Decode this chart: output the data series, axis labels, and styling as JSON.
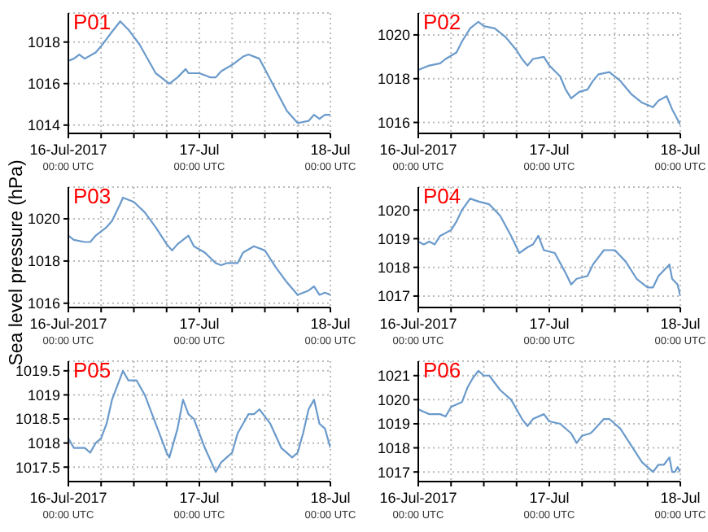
{
  "chart_data": [
    {
      "type": "line",
      "title": "P01",
      "x": [
        "2017-07-16T00:00",
        "2017-07-16T01:00",
        "2017-07-16T02:00",
        "2017-07-16T03:00",
        "2017-07-16T05:00",
        "2017-07-16T06:00",
        "2017-07-16T08:00",
        "2017-07-16T09:30",
        "2017-07-16T11:00",
        "2017-07-16T13:00",
        "2017-07-16T16:00",
        "2017-07-16T18:30",
        "2017-07-16T20:00",
        "2017-07-16T21:30",
        "2017-07-16T22:00",
        "2017-07-17T00:00",
        "2017-07-17T02:00",
        "2017-07-17T03:00",
        "2017-07-17T04:00",
        "2017-07-17T06:00",
        "2017-07-17T08:00",
        "2017-07-17T09:00",
        "2017-07-17T11:00",
        "2017-07-17T12:00",
        "2017-07-17T14:00",
        "2017-07-17T16:00",
        "2017-07-17T18:00",
        "2017-07-17T20:00",
        "2017-07-17T21:00",
        "2017-07-17T22:00",
        "2017-07-17T23:00",
        "2017-07-18T00:00"
      ],
      "series": [
        {
          "color": "#6a9acb",
          "values": [
            1017.1,
            1017.2,
            1017.4,
            1017.2,
            1017.5,
            1017.8,
            1018.5,
            1019.0,
            1018.6,
            1017.9,
            1016.5,
            1016.0,
            1016.3,
            1016.7,
            1016.5,
            1016.5,
            1016.3,
            1016.3,
            1016.6,
            1016.9,
            1017.3,
            1017.4,
            1017.2,
            1016.7,
            1015.7,
            1014.7,
            1014.1,
            1014.2,
            1014.5,
            1014.3,
            1014.5,
            1014.5
          ]
        }
      ],
      "xlim": [
        "2017-07-16T00:00",
        "2017-07-18T00:00"
      ],
      "xticks": [
        {
          "value": "2017-07-16T00:00",
          "label": "16-Jul-2017\n00:00 UTC"
        },
        {
          "value": "2017-07-16T06:00",
          "label": null
        },
        {
          "value": "2017-07-16T12:00",
          "label": null
        },
        {
          "value": "2017-07-16T18:00",
          "label": null
        },
        {
          "value": "2017-07-17T00:00",
          "label": "17-Jul\n00:00 UTC"
        },
        {
          "value": "2017-07-17T06:00",
          "label": null
        },
        {
          "value": "2017-07-17T12:00",
          "label": null
        },
        {
          "value": "2017-07-17T18:00",
          "label": null
        },
        {
          "value": "2017-07-18T00:00",
          "label": "18-Jul\n00:00 UTC"
        }
      ],
      "ylim": [
        1013.6,
        1019.4
      ],
      "yticks": [
        1014,
        1016,
        1018
      ],
      "grid": true,
      "marker": "none",
      "line_style": "solid",
      "legend": false
    },
    {
      "type": "line",
      "title": "P02",
      "x": [
        "2017-07-16T00:00",
        "2017-07-16T02:00",
        "2017-07-16T04:00",
        "2017-07-16T05:00",
        "2017-07-16T07:00",
        "2017-07-16T08:00",
        "2017-07-16T09:30",
        "2017-07-16T11:00",
        "2017-07-16T12:00",
        "2017-07-16T14:00",
        "2017-07-16T16:00",
        "2017-07-16T18:00",
        "2017-07-16T19:00",
        "2017-07-16T20:00",
        "2017-07-16T21:00",
        "2017-07-16T23:00",
        "2017-07-17T00:00",
        "2017-07-17T02:00",
        "2017-07-17T03:00",
        "2017-07-17T04:00",
        "2017-07-17T05:30",
        "2017-07-17T07:00",
        "2017-07-17T08:00",
        "2017-07-17T09:00",
        "2017-07-17T11:00",
        "2017-07-17T13:00",
        "2017-07-17T15:00",
        "2017-07-17T17:00",
        "2017-07-17T19:00",
        "2017-07-17T20:00",
        "2017-07-17T21:30",
        "2017-07-17T22:30",
        "2017-07-18T00:00"
      ],
      "series": [
        {
          "color": "#6a9acb",
          "values": [
            1018.4,
            1018.6,
            1018.7,
            1018.9,
            1019.2,
            1019.7,
            1020.3,
            1020.6,
            1020.4,
            1020.3,
            1019.9,
            1019.3,
            1018.9,
            1018.6,
            1018.9,
            1019.0,
            1018.6,
            1018.1,
            1017.5,
            1017.1,
            1017.4,
            1017.5,
            1017.9,
            1018.2,
            1018.3,
            1017.9,
            1017.3,
            1016.9,
            1016.7,
            1017.0,
            1017.2,
            1016.6,
            1015.9
          ]
        }
      ],
      "xlim": [
        "2017-07-16T00:00",
        "2017-07-18T00:00"
      ],
      "xticks": [
        {
          "value": "2017-07-16T00:00",
          "label": "16-Jul-2017\n00:00 UTC"
        },
        {
          "value": "2017-07-16T06:00",
          "label": null
        },
        {
          "value": "2017-07-16T12:00",
          "label": null
        },
        {
          "value": "2017-07-16T18:00",
          "label": null
        },
        {
          "value": "2017-07-17T00:00",
          "label": "17-Jul\n00:00 UTC"
        },
        {
          "value": "2017-07-17T06:00",
          "label": null
        },
        {
          "value": "2017-07-17T12:00",
          "label": null
        },
        {
          "value": "2017-07-17T18:00",
          "label": null
        },
        {
          "value": "2017-07-18T00:00",
          "label": "18-Jul\n00:00 UTC"
        }
      ],
      "ylim": [
        1015.5,
        1021.0
      ],
      "yticks": [
        1016,
        1018,
        1020
      ],
      "grid": true,
      "marker": "none",
      "line_style": "solid",
      "legend": false
    },
    {
      "type": "line",
      "title": "P03",
      "ylabel": "Sea level pressure (hPa)",
      "x": [
        "2017-07-16T00:00",
        "2017-07-16T01:00",
        "2017-07-16T03:00",
        "2017-07-16T04:00",
        "2017-07-16T05:00",
        "2017-07-16T07:00",
        "2017-07-16T08:00",
        "2017-07-16T09:30",
        "2017-07-16T10:00",
        "2017-07-16T12:00",
        "2017-07-16T14:00",
        "2017-07-16T16:00",
        "2017-07-16T18:00",
        "2017-07-16T19:00",
        "2017-07-16T20:00",
        "2017-07-16T22:00",
        "2017-07-16T23:00",
        "2017-07-17T01:00",
        "2017-07-17T03:00",
        "2017-07-17T04:00",
        "2017-07-17T05:00",
        "2017-07-17T07:00",
        "2017-07-17T08:00",
        "2017-07-17T10:00",
        "2017-07-17T12:00",
        "2017-07-17T14:00",
        "2017-07-17T16:00",
        "2017-07-17T18:00",
        "2017-07-17T20:00",
        "2017-07-17T21:00",
        "2017-07-17T22:00",
        "2017-07-17T23:00",
        "2017-07-18T00:00"
      ],
      "series": [
        {
          "color": "#6a9acb",
          "values": [
            1019.2,
            1019.0,
            1018.9,
            1018.9,
            1019.2,
            1019.6,
            1019.9,
            1020.7,
            1021.0,
            1020.8,
            1020.3,
            1019.6,
            1018.8,
            1018.5,
            1018.8,
            1019.2,
            1018.7,
            1018.4,
            1017.9,
            1017.8,
            1017.9,
            1017.9,
            1018.4,
            1018.7,
            1018.5,
            1017.7,
            1017.0,
            1016.4,
            1016.6,
            1016.8,
            1016.4,
            1016.5,
            1016.4
          ]
        }
      ],
      "xlim": [
        "2017-07-16T00:00",
        "2017-07-18T00:00"
      ],
      "xticks": [
        {
          "value": "2017-07-16T00:00",
          "label": "16-Jul-2017\n00:00 UTC"
        },
        {
          "value": "2017-07-16T06:00",
          "label": null
        },
        {
          "value": "2017-07-16T12:00",
          "label": null
        },
        {
          "value": "2017-07-16T18:00",
          "label": null
        },
        {
          "value": "2017-07-17T00:00",
          "label": "17-Jul\n00:00 UTC"
        },
        {
          "value": "2017-07-17T06:00",
          "label": null
        },
        {
          "value": "2017-07-17T12:00",
          "label": null
        },
        {
          "value": "2017-07-17T18:00",
          "label": null
        },
        {
          "value": "2017-07-18T00:00",
          "label": "18-Jul\n00:00 UTC"
        }
      ],
      "ylim": [
        1015.8,
        1021.5
      ],
      "yticks": [
        1016,
        1018,
        1020
      ],
      "grid": true,
      "marker": "none",
      "line_style": "solid",
      "legend": false
    },
    {
      "type": "line",
      "title": "P04",
      "x": [
        "2017-07-16T00:00",
        "2017-07-16T01:00",
        "2017-07-16T02:00",
        "2017-07-16T03:00",
        "2017-07-16T04:00",
        "2017-07-16T06:00",
        "2017-07-16T07:00",
        "2017-07-16T08:00",
        "2017-07-16T09:30",
        "2017-07-16T11:00",
        "2017-07-16T13:00",
        "2017-07-16T15:00",
        "2017-07-16T17:00",
        "2017-07-16T18:30",
        "2017-07-16T20:00",
        "2017-07-16T21:00",
        "2017-07-16T22:00",
        "2017-07-16T23:00",
        "2017-07-17T01:00",
        "2017-07-17T03:00",
        "2017-07-17T04:00",
        "2017-07-17T05:00",
        "2017-07-17T07:00",
        "2017-07-17T08:00",
        "2017-07-17T10:00",
        "2017-07-17T12:00",
        "2017-07-17T14:00",
        "2017-07-17T16:00",
        "2017-07-17T18:00",
        "2017-07-17T19:00",
        "2017-07-17T20:00",
        "2017-07-17T22:00",
        "2017-07-17T22:30",
        "2017-07-17T23:30",
        "2017-07-18T00:00"
      ],
      "series": [
        {
          "color": "#6a9acb",
          "values": [
            1018.9,
            1018.8,
            1018.9,
            1018.8,
            1019.1,
            1019.3,
            1019.6,
            1020.0,
            1020.4,
            1020.3,
            1020.2,
            1019.8,
            1019.1,
            1018.5,
            1018.7,
            1018.8,
            1019.1,
            1018.6,
            1018.5,
            1017.8,
            1017.4,
            1017.6,
            1017.7,
            1018.1,
            1018.6,
            1018.6,
            1018.2,
            1017.6,
            1017.3,
            1017.3,
            1017.7,
            1018.1,
            1017.6,
            1017.4,
            1017.0
          ]
        }
      ],
      "xlim": [
        "2017-07-16T00:00",
        "2017-07-18T00:00"
      ],
      "xticks": [
        {
          "value": "2017-07-16T00:00",
          "label": "16-Jul-2017\n00:00 UTC"
        },
        {
          "value": "2017-07-16T06:00",
          "label": null
        },
        {
          "value": "2017-07-16T12:00",
          "label": null
        },
        {
          "value": "2017-07-16T18:00",
          "label": null
        },
        {
          "value": "2017-07-17T00:00",
          "label": "17-Jul\n00:00 UTC"
        },
        {
          "value": "2017-07-17T06:00",
          "label": null
        },
        {
          "value": "2017-07-17T12:00",
          "label": null
        },
        {
          "value": "2017-07-17T18:00",
          "label": null
        },
        {
          "value": "2017-07-18T00:00",
          "label": "18-Jul\n00:00 UTC"
        }
      ],
      "ylim": [
        1016.6,
        1020.8
      ],
      "yticks": [
        1017,
        1018,
        1019,
        1020
      ],
      "grid": true,
      "marker": "none",
      "line_style": "solid",
      "legend": false
    },
    {
      "type": "line",
      "title": "P05",
      "x": [
        "2017-07-16T00:00",
        "2017-07-16T01:00",
        "2017-07-16T03:00",
        "2017-07-16T04:00",
        "2017-07-16T05:00",
        "2017-07-16T06:00",
        "2017-07-16T07:00",
        "2017-07-16T08:00",
        "2017-07-16T09:00",
        "2017-07-16T10:00",
        "2017-07-16T11:00",
        "2017-07-16T12:30",
        "2017-07-16T14:00",
        "2017-07-16T16:00",
        "2017-07-16T18:00",
        "2017-07-16T18:30",
        "2017-07-16T20:00",
        "2017-07-16T21:00",
        "2017-07-16T22:00",
        "2017-07-16T23:00",
        "2017-07-17T00:00",
        "2017-07-17T01:00",
        "2017-07-17T03:00",
        "2017-07-17T04:00",
        "2017-07-17T05:00",
        "2017-07-17T06:00",
        "2017-07-17T07:00",
        "2017-07-17T08:00",
        "2017-07-17T09:00",
        "2017-07-17T10:00",
        "2017-07-17T11:00",
        "2017-07-17T13:00",
        "2017-07-17T15:00",
        "2017-07-17T17:00",
        "2017-07-17T18:00",
        "2017-07-17T19:00",
        "2017-07-17T20:00",
        "2017-07-17T21:00",
        "2017-07-17T22:00",
        "2017-07-17T23:00",
        "2017-07-18T00:00"
      ],
      "series": [
        {
          "color": "#6a9acb",
          "values": [
            1018.1,
            1017.9,
            1017.9,
            1017.8,
            1018.0,
            1018.1,
            1018.4,
            1018.9,
            1019.2,
            1019.5,
            1019.3,
            1019.3,
            1019.0,
            1018.4,
            1017.8,
            1017.7,
            1018.3,
            1018.9,
            1018.6,
            1018.5,
            1018.2,
            1017.9,
            1017.4,
            1017.6,
            1017.7,
            1017.8,
            1018.2,
            1018.4,
            1018.6,
            1018.6,
            1018.7,
            1018.4,
            1017.9,
            1017.7,
            1017.8,
            1018.2,
            1018.7,
            1018.9,
            1018.4,
            1018.3,
            1017.9
          ]
        }
      ],
      "xlim": [
        "2017-07-16T00:00",
        "2017-07-18T00:00"
      ],
      "xticks": [
        {
          "value": "2017-07-16T00:00",
          "label": "16-Jul-2017\n00:00 UTC"
        },
        {
          "value": "2017-07-16T06:00",
          "label": null
        },
        {
          "value": "2017-07-16T12:00",
          "label": null
        },
        {
          "value": "2017-07-16T18:00",
          "label": null
        },
        {
          "value": "2017-07-17T00:00",
          "label": "17-Jul\n00:00 UTC"
        },
        {
          "value": "2017-07-17T06:00",
          "label": null
        },
        {
          "value": "2017-07-17T12:00",
          "label": null
        },
        {
          "value": "2017-07-17T18:00",
          "label": null
        },
        {
          "value": "2017-07-18T00:00",
          "label": "18-Jul\n00:00 UTC"
        }
      ],
      "ylim": [
        1017.2,
        1019.7
      ],
      "yticks": [
        1017.5,
        1018,
        1018.5,
        1019,
        1019.5
      ],
      "grid": true,
      "marker": "none",
      "line_style": "solid",
      "legend": false
    },
    {
      "type": "line",
      "title": "P06",
      "x": [
        "2017-07-16T00:00",
        "2017-07-16T02:00",
        "2017-07-16T04:00",
        "2017-07-16T05:00",
        "2017-07-16T06:00",
        "2017-07-16T08:00",
        "2017-07-16T09:00",
        "2017-07-16T10:00",
        "2017-07-16T11:00",
        "2017-07-16T12:00",
        "2017-07-16T13:00",
        "2017-07-16T15:00",
        "2017-07-16T17:00",
        "2017-07-16T19:00",
        "2017-07-16T20:00",
        "2017-07-16T21:00",
        "2017-07-16T23:00",
        "2017-07-17T00:00",
        "2017-07-17T02:00",
        "2017-07-17T04:00",
        "2017-07-17T05:00",
        "2017-07-17T06:00",
        "2017-07-17T07:30",
        "2017-07-17T08:00",
        "2017-07-17T10:00",
        "2017-07-17T11:00",
        "2017-07-17T13:00",
        "2017-07-17T15:00",
        "2017-07-17T17:00",
        "2017-07-17T19:00",
        "2017-07-17T20:00",
        "2017-07-17T21:00",
        "2017-07-17T22:00",
        "2017-07-17T22:30",
        "2017-07-17T23:00",
        "2017-07-17T23:30",
        "2017-07-18T00:00"
      ],
      "series": [
        {
          "color": "#6a9acb",
          "values": [
            1019.6,
            1019.4,
            1019.4,
            1019.3,
            1019.7,
            1019.9,
            1020.5,
            1020.9,
            1021.2,
            1021.0,
            1021.0,
            1020.4,
            1020.0,
            1019.2,
            1018.9,
            1019.2,
            1019.4,
            1019.1,
            1019.0,
            1018.6,
            1018.2,
            1018.5,
            1018.6,
            1018.7,
            1019.2,
            1019.2,
            1018.8,
            1018.1,
            1017.4,
            1017.0,
            1017.3,
            1017.3,
            1017.6,
            1017.0,
            1017.0,
            1017.2,
            1017.0
          ]
        }
      ],
      "xlim": [
        "2017-07-16T00:00",
        "2017-07-18T00:00"
      ],
      "xticks": [
        {
          "value": "2017-07-16T00:00",
          "label": "16-Jul-2017\n00:00 UTC"
        },
        {
          "value": "2017-07-16T06:00",
          "label": null
        },
        {
          "value": "2017-07-16T12:00",
          "label": null
        },
        {
          "value": "2017-07-16T18:00",
          "label": null
        },
        {
          "value": "2017-07-17T00:00",
          "label": "17-Jul\n00:00 UTC"
        },
        {
          "value": "2017-07-17T06:00",
          "label": null
        },
        {
          "value": "2017-07-17T12:00",
          "label": null
        },
        {
          "value": "2017-07-17T18:00",
          "label": null
        },
        {
          "value": "2017-07-18T00:00",
          "label": "18-Jul\n00:00 UTC"
        }
      ],
      "ylim": [
        1016.6,
        1021.6
      ],
      "yticks": [
        1017,
        1018,
        1019,
        1020,
        1021
      ],
      "grid": true,
      "marker": "none",
      "line_style": "solid",
      "legend": false
    }
  ]
}
